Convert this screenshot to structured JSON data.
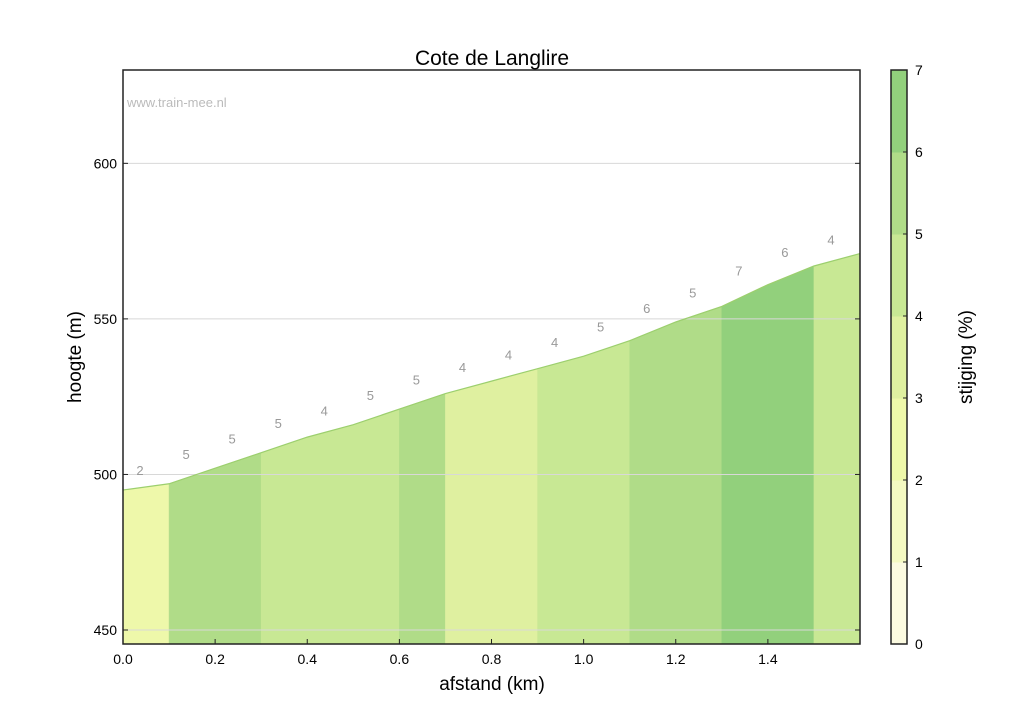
{
  "chart_data": {
    "type": "area",
    "title": "Cote de Langlire",
    "watermark": "www.train-mee.nl",
    "xlabel": "afstand (km)",
    "ylabel": "hoogte (m)",
    "xlim": [
      0,
      1.6
    ],
    "ylim": [
      445.5,
      630
    ],
    "xticks": [
      "0.0",
      "0.2",
      "0.4",
      "0.6",
      "0.8",
      "1.0",
      "1.2",
      "1.4"
    ],
    "xtick_values": [
      0,
      0.2,
      0.4,
      0.6,
      0.8,
      1.0,
      1.2,
      1.4
    ],
    "yticks": [
      "450",
      "500",
      "550",
      "600"
    ],
    "ytick_values": [
      450,
      500,
      550,
      600
    ],
    "grid": "horizontal",
    "x": [
      0,
      0.1,
      0.2,
      0.3,
      0.4,
      0.5,
      0.6,
      0.7,
      0.8,
      0.9,
      1.0,
      1.1,
      1.2,
      1.3,
      1.4,
      1.5,
      1.6
    ],
    "elevation": [
      495,
      497,
      502,
      507,
      512,
      516,
      521,
      526,
      530,
      534,
      538,
      543,
      549,
      554,
      561,
      567,
      571
    ],
    "segment_grade_labels": [
      "2",
      "5",
      "5",
      "5",
      "4",
      "5",
      "5",
      "4",
      "4",
      "4",
      "5",
      "6",
      "5",
      "7",
      "6",
      "4"
    ],
    "segment_color_class": [
      2,
      5,
      5,
      4,
      4,
      4,
      5,
      3,
      3,
      4,
      4,
      5,
      5,
      6,
      6,
      4
    ],
    "colorbar": {
      "label": "stijging (%)",
      "range": [
        0,
        7
      ],
      "ticks": [
        "0",
        "1",
        "2",
        "3",
        "4",
        "5",
        "6",
        "7"
      ],
      "colors": [
        "#fbfae0",
        "#f4f9c2",
        "#eef8aa",
        "#dff0a0",
        "#c8e894",
        "#b0dc88",
        "#92d07c"
      ]
    },
    "colors": {
      "line": "#9ccf6e",
      "grid": "#d8d8d8",
      "label": "#999999",
      "watermark": "#bbbbbb"
    }
  }
}
